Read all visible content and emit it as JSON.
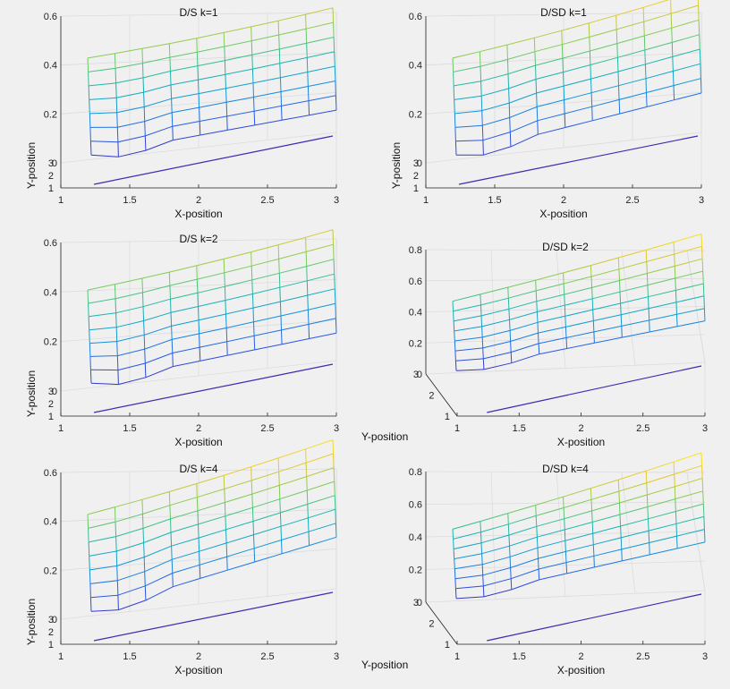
{
  "chart_data": [
    {
      "type": "surface",
      "title": "D/S  k=1",
      "xlabel": "X-position",
      "ylabel": "Y-position",
      "xticks": [
        "1",
        "1.5",
        "2",
        "2.5",
        "3"
      ],
      "yticks": [
        "1",
        "2",
        "3"
      ],
      "zticks": [
        "0",
        "0.2",
        "0.4",
        "0.6"
      ],
      "zlim": [
        0,
        0.6
      ],
      "view": "a",
      "left_edge_z": [
        0.05,
        0.37
      ],
      "right_edge_z": [
        0.08,
        0.48
      ]
    },
    {
      "type": "surface",
      "title": "D/SD  k=1",
      "xlabel": "X-position",
      "ylabel": "Y-position",
      "xticks": [
        "1",
        "1.5",
        "2",
        "2.5",
        "3"
      ],
      "yticks": [
        "1",
        "2",
        "3"
      ],
      "zticks": [
        "0",
        "0.2",
        "0.4",
        "0.6"
      ],
      "zlim": [
        0,
        0.6
      ],
      "view": "a",
      "left_edge_z": [
        0.05,
        0.37
      ],
      "right_edge_z": [
        0.15,
        0.55
      ]
    },
    {
      "type": "surface",
      "title": "D/S  k=2",
      "xlabel": "X-position",
      "ylabel": "Y-position",
      "xticks": [
        "1",
        "1.5",
        "2",
        "2.5",
        "3"
      ],
      "yticks": [
        "1",
        "2",
        "3"
      ],
      "zticks": [
        "0",
        "0.2",
        "0.4",
        "0.6"
      ],
      "zlim": [
        0,
        0.6
      ],
      "view": "a",
      "left_edge_z": [
        0.05,
        0.35
      ],
      "right_edge_z": [
        0.1,
        0.5
      ]
    },
    {
      "type": "surface",
      "title": "D/SD  k=2",
      "xlabel": "X-position",
      "ylabel": "Y-position",
      "xticks": [
        "1",
        "1.5",
        "2",
        "2.5",
        "3"
      ],
      "yticks": [
        "1",
        "2",
        "3"
      ],
      "zticks": [
        "0",
        "0.2",
        "0.4",
        "0.6",
        "0.8"
      ],
      "zlim": [
        0,
        0.8
      ],
      "view": "b",
      "left_edge_z": [
        0.05,
        0.4
      ],
      "right_edge_z": [
        0.25,
        0.78
      ]
    },
    {
      "type": "surface",
      "title": "D/S k=4",
      "xlabel": "X-position",
      "ylabel": "Y-position",
      "xticks": [
        "1",
        "1.5",
        "2",
        "2.5",
        "3"
      ],
      "yticks": [
        "1",
        "2",
        "3"
      ],
      "zticks": [
        "0",
        "0.2",
        "0.4",
        "0.6"
      ],
      "zlim": [
        0,
        0.6
      ],
      "view": "a",
      "left_edge_z": [
        0.05,
        0.37
      ],
      "right_edge_z": [
        0.2,
        0.58
      ]
    },
    {
      "type": "surface",
      "title": "D/SD k=4",
      "xlabel": "X-position",
      "ylabel": "Y-position",
      "xticks": [
        "1",
        "1.5",
        "2",
        "2.5",
        "3"
      ],
      "yticks": [
        "1",
        "2",
        "3"
      ],
      "zticks": [
        "0",
        "0.2",
        "0.4",
        "0.6",
        "0.8"
      ],
      "zlim": [
        0,
        0.8
      ],
      "view": "b",
      "left_edge_z": [
        0.05,
        0.38
      ],
      "right_edge_z": [
        0.28,
        0.8
      ]
    }
  ]
}
